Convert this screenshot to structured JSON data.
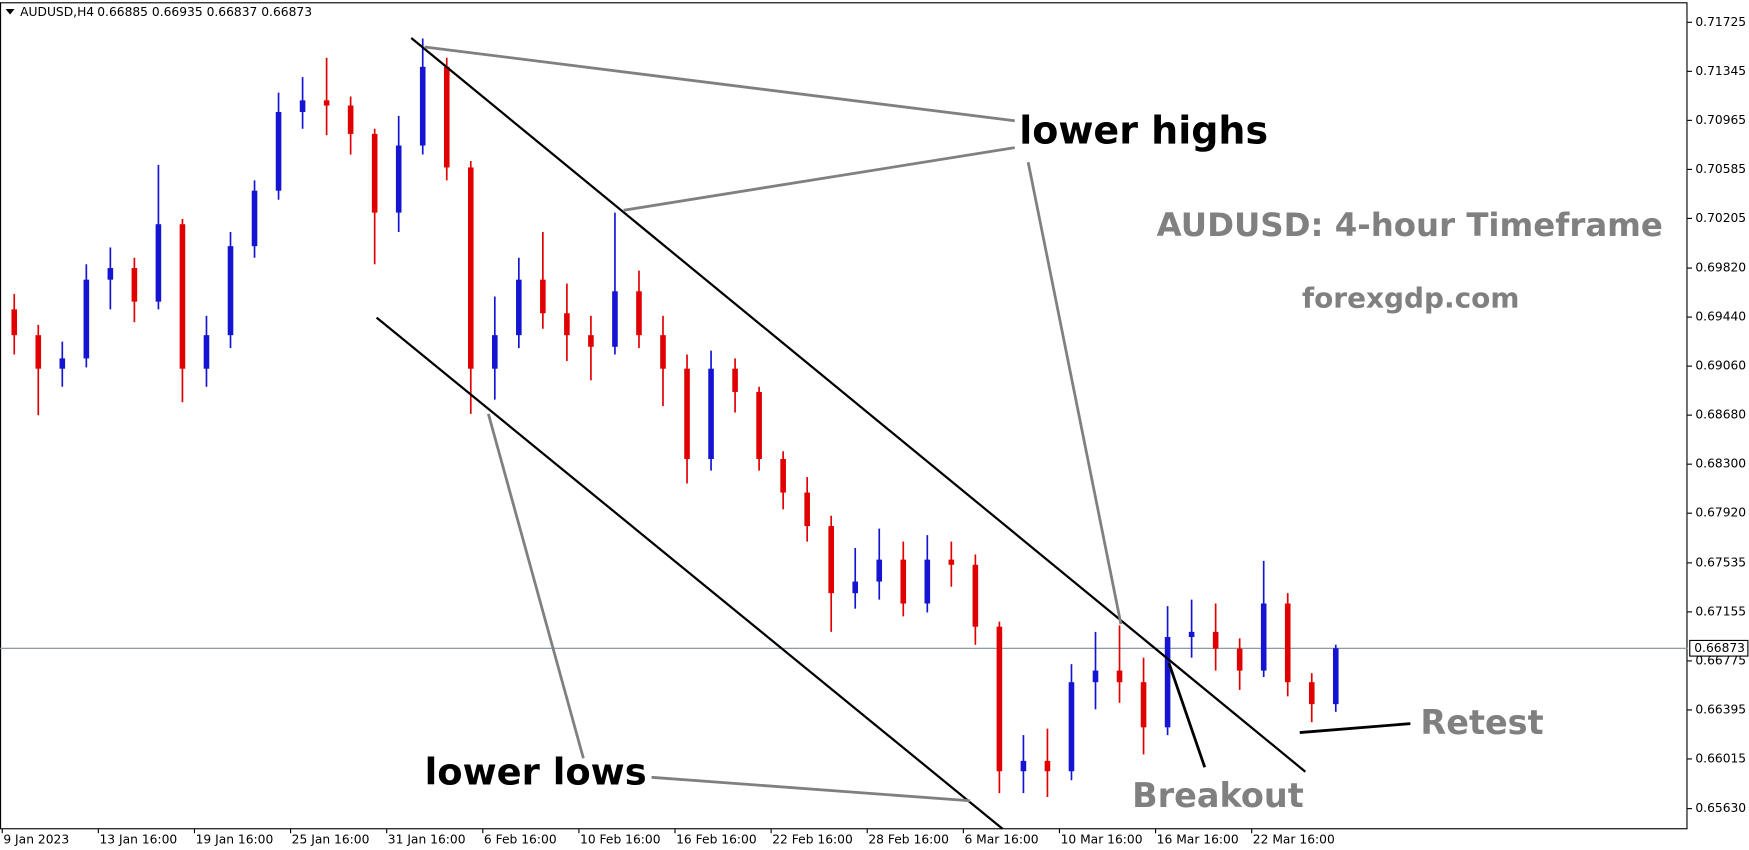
{
  "chart_data": {
    "type": "candlestick",
    "symbol": "AUDUSD,H4",
    "ohlc_header": "0.66885 0.66935 0.66837 0.66873",
    "up_color": "#1414d2",
    "down_color": "#e00000",
    "ylim": [
      0.65474,
      0.71872
    ],
    "yticks": [
      0.71725,
      0.71345,
      0.70965,
      0.70585,
      0.70205,
      {
        "value": 0.6982,
        "label": "0.69820"
      },
      {
        "value": 0.6944,
        "label": "0.69440"
      },
      {
        "value": 0.6906,
        "label": "0.69060"
      },
      {
        "value": 0.6868,
        "label": "0.68680"
      },
      {
        "value": 0.683,
        "label": "0.68300"
      },
      {
        "value": 0.6792,
        "label": "0.67920"
      },
      0.67535,
      0.67155,
      0.66775,
      0.66395,
      0.66015,
      {
        "value": 0.6563,
        "label": "0.65630"
      }
    ],
    "current_price": 0.66873,
    "categories": [
      "9 Jan 2023",
      null,
      null,
      null,
      "13 Jan 16:00",
      null,
      null,
      null,
      "19 Jan 16:00",
      null,
      null,
      null,
      "25 Jan 16:00",
      null,
      null,
      null,
      "31 Jan 16:00",
      null,
      null,
      null,
      "6 Feb 16:00",
      null,
      null,
      null,
      "10 Feb 16:00",
      null,
      null,
      null,
      "16 Feb 16:00",
      null,
      null,
      null,
      "22 Feb 16:00",
      null,
      null,
      null,
      "28 Feb 16:00",
      null,
      null,
      null,
      "6 Mar 16:00",
      null,
      null,
      null,
      "10 Mar 16:00",
      null,
      null,
      null,
      "16 Mar 16:00",
      null,
      null,
      null,
      "22 Mar 16:00",
      null,
      null,
      null
    ],
    "open": [
      0.695,
      0.693,
      0.6904,
      0.6912,
      0.6973,
      0.6982,
      0.6956,
      0.7016,
      0.6904,
      0.693,
      0.6999,
      0.7042,
      0.7103,
      0.7112,
      0.7108,
      0.7086,
      0.7025,
      0.7077,
      0.7138,
      0.706,
      0.6904,
      0.693,
      0.6973,
      0.6947,
      0.693,
      0.6921,
      0.6964,
      0.693,
      0.6904,
      0.6834,
      0.6904,
      0.6886,
      0.6834,
      0.6808,
      0.6782,
      0.673,
      0.6739,
      0.6756,
      0.6722,
      0.6756,
      0.6752,
      0.6704,
      0.6592,
      0.66,
      0.6592,
      0.6661,
      0.667,
      0.6661,
      0.6626,
      0.6696,
      0.67,
      0.6687,
      0.667,
      0.6722,
      0.6661,
      0.6644
    ],
    "high": [
      0.6962,
      0.6938,
      0.6925,
      0.6985,
      0.6998,
      0.699,
      0.7062,
      0.702,
      0.6945,
      0.701,
      0.705,
      0.7118,
      0.713,
      0.7145,
      0.7115,
      0.709,
      0.71,
      0.716,
      0.7145,
      0.7065,
      0.696,
      0.699,
      0.701,
      0.697,
      0.6945,
      0.7025,
      0.698,
      0.6945,
      0.6915,
      0.6918,
      0.6912,
      0.689,
      0.684,
      0.682,
      0.679,
      0.6765,
      0.678,
      0.677,
      0.6775,
      0.677,
      0.676,
      0.6708,
      0.662,
      0.6625,
      0.6675,
      0.67,
      0.6705,
      0.668,
      0.672,
      0.6725,
      0.6722,
      0.6695,
      0.6755,
      0.673,
      0.6668,
      0.669
    ],
    "low": [
      0.6915,
      0.6868,
      0.689,
      0.6905,
      0.695,
      0.694,
      0.695,
      0.6878,
      0.689,
      0.692,
      0.699,
      0.7035,
      0.709,
      0.7085,
      0.707,
      0.6985,
      0.701,
      0.707,
      0.705,
      0.6869,
      0.688,
      0.692,
      0.6935,
      0.691,
      0.6895,
      0.6915,
      0.692,
      0.6875,
      0.6815,
      0.6825,
      0.687,
      0.6825,
      0.6795,
      0.677,
      0.67,
      0.6718,
      0.6725,
      0.6712,
      0.6715,
      0.6735,
      0.669,
      0.6575,
      0.6575,
      0.6572,
      0.6585,
      0.664,
      0.6645,
      0.6605,
      0.662,
      0.668,
      0.667,
      0.6655,
      0.6665,
      0.665,
      0.663,
      0.6638
    ],
    "close": [
      0.693,
      0.6904,
      0.6912,
      0.6973,
      0.6982,
      0.6956,
      0.7016,
      0.6904,
      0.693,
      0.6999,
      0.7042,
      0.7103,
      0.7112,
      0.7108,
      0.7086,
      0.7025,
      0.7077,
      0.7138,
      0.706,
      0.6904,
      0.693,
      0.6973,
      0.6947,
      0.693,
      0.6921,
      0.6964,
      0.693,
      0.6904,
      0.6834,
      0.6904,
      0.6886,
      0.6834,
      0.6808,
      0.6782,
      0.673,
      0.6739,
      0.6756,
      0.6722,
      0.6756,
      0.6752,
      0.6704,
      0.6592,
      0.66,
      0.6592,
      0.6661,
      0.667,
      0.6661,
      0.6626,
      0.6696,
      0.67,
      0.6687,
      0.667,
      0.6722,
      0.6661,
      0.6644,
      0.66873
    ],
    "annotations": [
      "lower highs",
      "AUDUSD: 4-hour Timeframe",
      "forexgdp.com",
      "lower lows",
      "Breakout",
      "Retest"
    ]
  }
}
